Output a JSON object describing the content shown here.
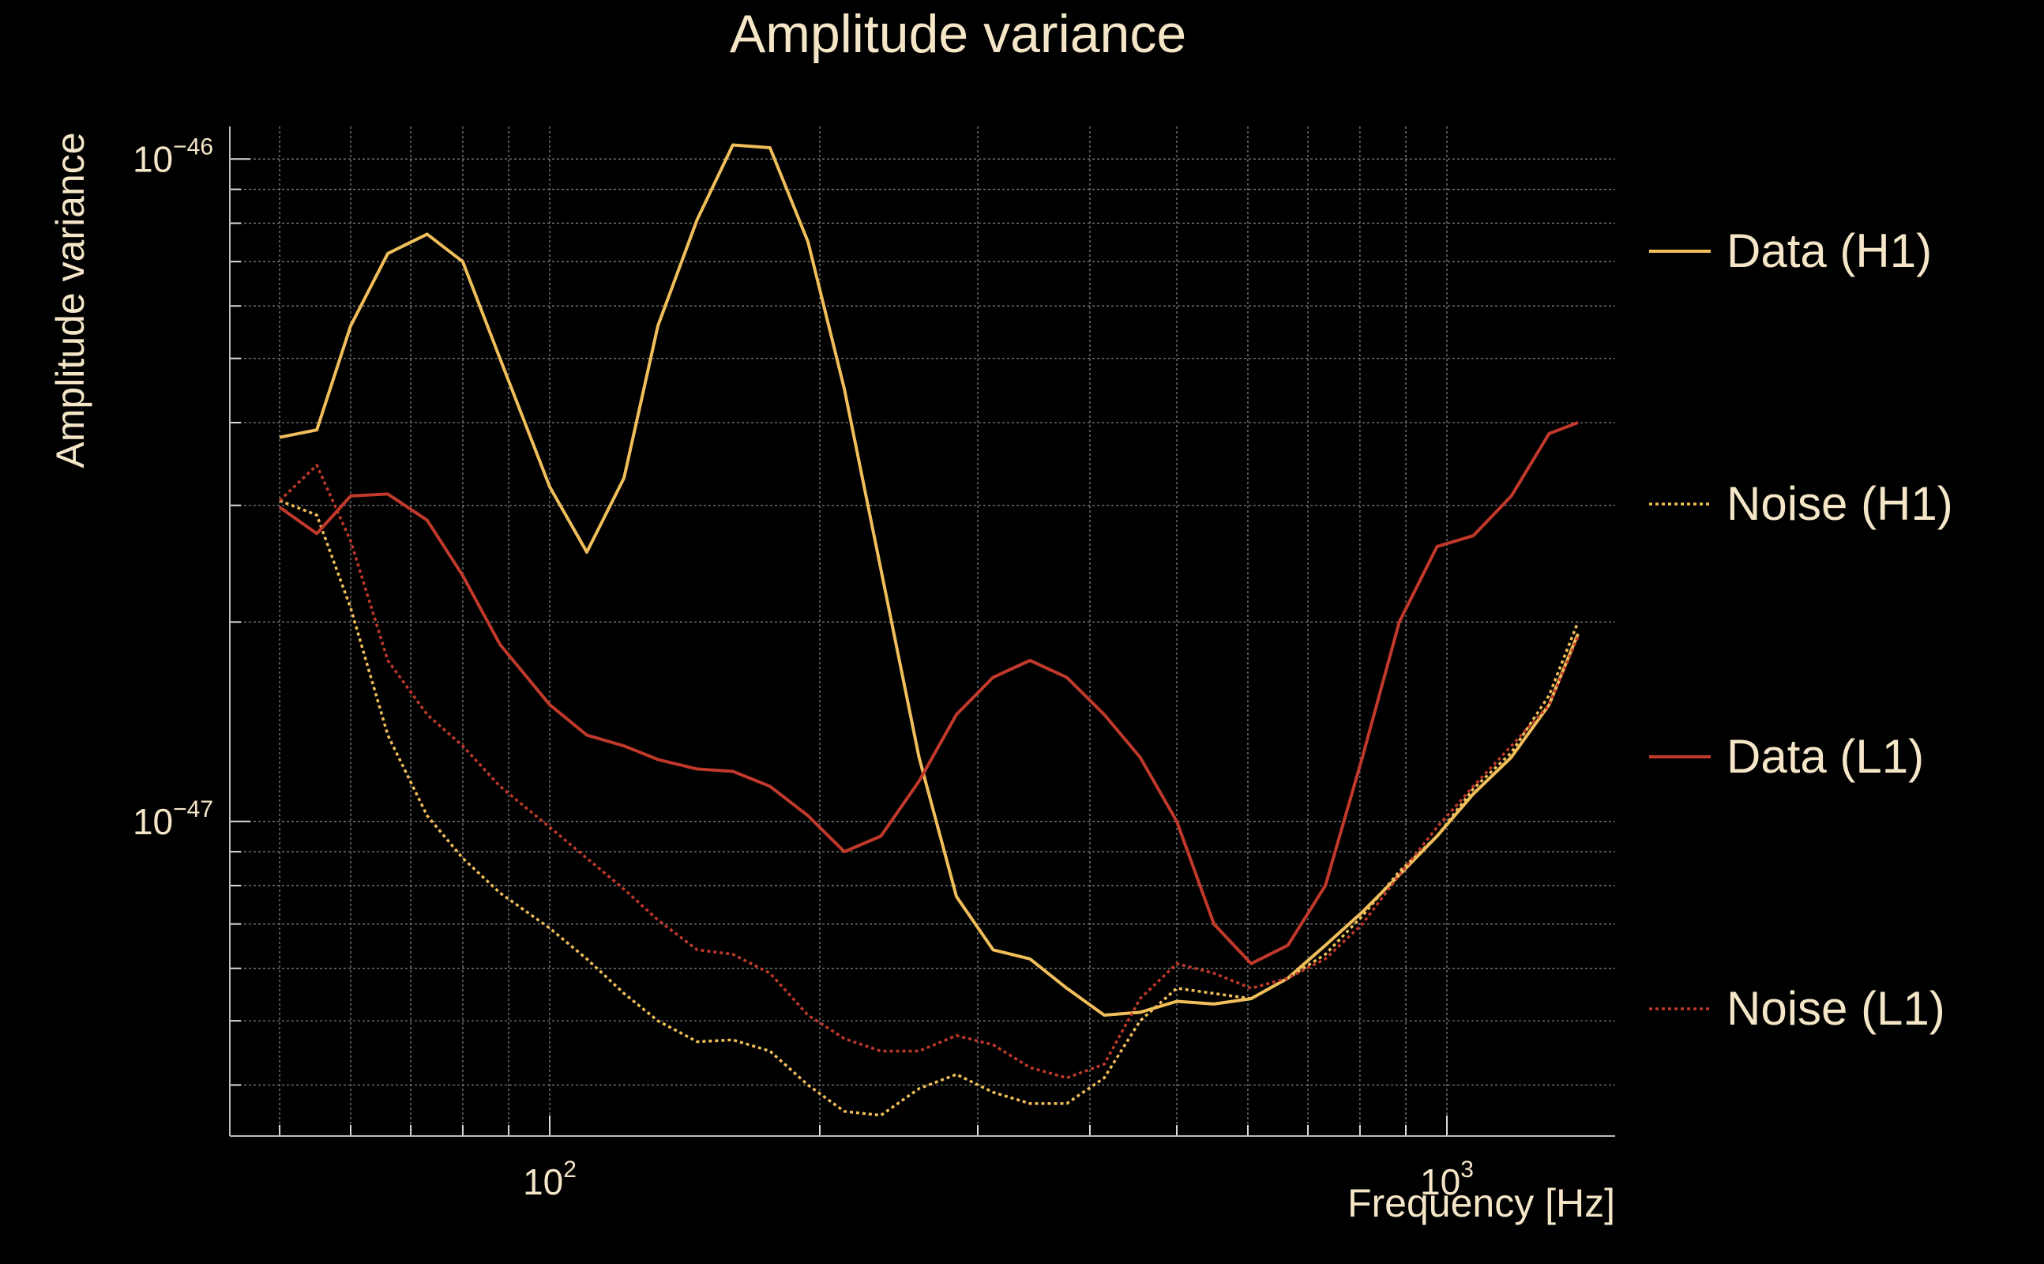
{
  "chart_data": {
    "type": "line",
    "title": "Amplitude variance",
    "xlabel": "Frequency [Hz]",
    "ylabel": "Amplitude variance",
    "xscale": "log",
    "yscale": "log",
    "xlim": [
      44,
      1540
    ],
    "ylim": [
      3.35e-48,
      1.12e-46
    ],
    "x_ticks": [
      {
        "value": 100,
        "base": "10",
        "exp": "2"
      },
      {
        "value": 1000,
        "base": "10",
        "exp": "3"
      }
    ],
    "y_ticks": [
      {
        "value": 1e-46,
        "base": "10",
        "exp": "−46"
      },
      {
        "value": 1e-47,
        "base": "10",
        "exp": "−47"
      }
    ],
    "grid": true,
    "legend_position": "right",
    "colors": {
      "background": "#000000",
      "text": "#f5e6c8",
      "grid": "#888888",
      "axis": "#bbbbbb"
    },
    "series": [
      {
        "name": "Data (H1)",
        "color": "#f0be5a",
        "style": "solid",
        "x": [
          50,
          55,
          60,
          66,
          73,
          80,
          88,
          100,
          110,
          121,
          132,
          146,
          160,
          176,
          194,
          213,
          234,
          258,
          284,
          312,
          343,
          377,
          415,
          455,
          500,
          550,
          605,
          665,
          732,
          805,
          885,
          975,
          1070,
          1180,
          1300,
          1400
        ],
        "y": [
          3.8e-47,
          3.9e-47,
          5.6e-47,
          7.2e-47,
          7.7e-47,
          7e-47,
          5e-47,
          3.2e-47,
          2.55e-47,
          3.3e-47,
          5.6e-47,
          8.1e-47,
          1.05e-46,
          1.04e-46,
          7.5e-47,
          4.5e-47,
          2.4e-47,
          1.25e-47,
          7.7e-48,
          6.4e-48,
          6.2e-48,
          5.6e-48,
          5.1e-48,
          5.15e-48,
          5.35e-48,
          5.3e-48,
          5.4e-48,
          5.8e-48,
          6.5e-48,
          7.3e-48,
          8.3e-48,
          9.5e-48,
          1.1e-47,
          1.25e-47,
          1.5e-47,
          1.92e-47
        ]
      },
      {
        "name": "Noise (H1)",
        "color": "#f0be5a",
        "style": "dotted",
        "x": [
          50,
          55,
          60,
          66,
          73,
          80,
          88,
          100,
          110,
          121,
          132,
          146,
          160,
          176,
          194,
          213,
          234,
          258,
          284,
          312,
          343,
          377,
          415,
          455,
          500,
          550,
          605,
          665,
          732,
          805,
          885,
          975,
          1070,
          1180,
          1300,
          1400
        ],
        "y": [
          3.05e-47,
          2.9e-47,
          2.1e-47,
          1.35e-47,
          1.02e-47,
          8.8e-48,
          7.8e-48,
          6.9e-48,
          6.2e-48,
          5.5e-48,
          5e-48,
          4.65e-48,
          4.68e-48,
          4.5e-48,
          4e-48,
          3.65e-48,
          3.6e-48,
          3.95e-48,
          4.15e-48,
          3.9e-48,
          3.75e-48,
          3.75e-48,
          4.1e-48,
          5e-48,
          5.6e-48,
          5.5e-48,
          5.4e-48,
          5.8e-48,
          6.3e-48,
          7.2e-48,
          8.4e-48,
          9.5e-48,
          1.12e-47,
          1.27e-47,
          1.55e-47,
          2e-47
        ]
      },
      {
        "name": "Data (L1)",
        "color": "#c0392b",
        "style": "solid",
        "x": [
          50,
          55,
          60,
          66,
          73,
          80,
          88,
          100,
          110,
          121,
          132,
          146,
          160,
          176,
          194,
          213,
          234,
          258,
          284,
          312,
          343,
          377,
          415,
          455,
          500,
          550,
          605,
          665,
          732,
          805,
          885,
          975,
          1070,
          1180,
          1300,
          1400
        ],
        "y": [
          2.98e-47,
          2.72e-47,
          3.1e-47,
          3.12e-47,
          2.85e-47,
          2.35e-47,
          1.85e-47,
          1.5e-47,
          1.35e-47,
          1.3e-47,
          1.24e-47,
          1.2e-47,
          1.19e-47,
          1.13e-47,
          1.02e-47,
          9e-48,
          9.5e-48,
          1.15e-47,
          1.45e-47,
          1.65e-47,
          1.75e-47,
          1.65e-47,
          1.45e-47,
          1.25e-47,
          1e-47,
          7e-48,
          6.1e-48,
          6.5e-48,
          8e-48,
          1.25e-47,
          2e-47,
          2.6e-47,
          2.7e-47,
          3.1e-47,
          3.85e-47,
          4e-47
        ]
      },
      {
        "name": "Noise (L1)",
        "color": "#c0392b",
        "style": "dotted",
        "x": [
          50,
          55,
          60,
          66,
          73,
          80,
          88,
          100,
          110,
          121,
          132,
          146,
          160,
          176,
          194,
          213,
          234,
          258,
          284,
          312,
          343,
          377,
          415,
          455,
          500,
          550,
          605,
          665,
          732,
          805,
          885,
          975,
          1070,
          1180,
          1300,
          1400
        ],
        "y": [
          3.05e-47,
          3.45e-47,
          2.65e-47,
          1.75e-47,
          1.45e-47,
          1.3e-47,
          1.13e-47,
          9.8e-48,
          8.8e-48,
          7.9e-48,
          7.1e-48,
          6.4e-48,
          6.3e-48,
          5.9e-48,
          5.1e-48,
          4.7e-48,
          4.5e-48,
          4.5e-48,
          4.75e-48,
          4.6e-48,
          4.25e-48,
          4.1e-48,
          4.3e-48,
          5.4e-48,
          6.1e-48,
          5.9e-48,
          5.6e-48,
          5.8e-48,
          6.2e-48,
          7e-48,
          8.3e-48,
          9.8e-48,
          1.13e-47,
          1.3e-47,
          1.5e-47,
          1.9e-47
        ]
      }
    ]
  }
}
